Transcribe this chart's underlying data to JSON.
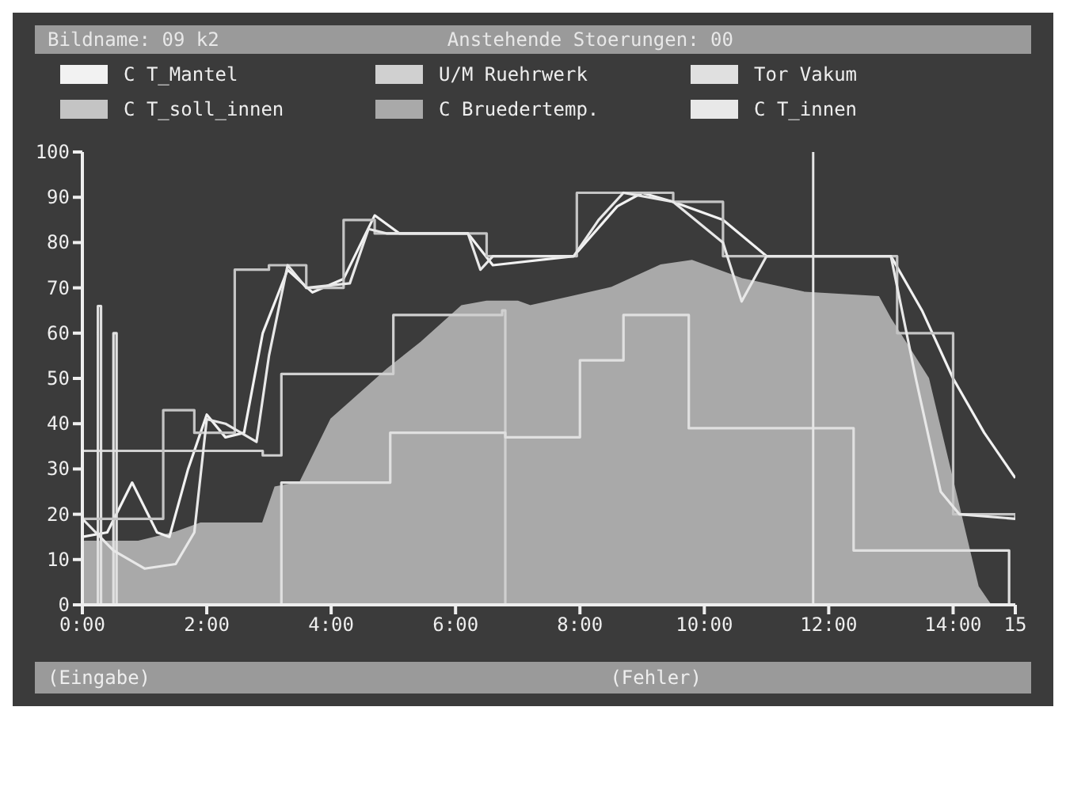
{
  "chart_data": {
    "type": "line",
    "title": "Bildname: 09 k2",
    "subtitle": "Anstehende Stoerungen: 00",
    "annotations": [
      "(Eingabe)",
      "(Fehler)"
    ],
    "xlim": [
      0,
      15
    ],
    "ylim": [
      0,
      100
    ],
    "xticks": [
      {
        "value": 0,
        "label": "0:00"
      },
      {
        "value": 2,
        "label": "2:00"
      },
      {
        "value": 4,
        "label": "4:00"
      },
      {
        "value": 6,
        "label": "6:00"
      },
      {
        "value": 8,
        "label": "8:00"
      },
      {
        "value": 10,
        "label": "10:00"
      },
      {
        "value": 12,
        "label": "12:00"
      },
      {
        "value": 14,
        "label": "14:00"
      },
      15
    ],
    "yticks": [
      0,
      10,
      20,
      30,
      40,
      50,
      60,
      70,
      80,
      90,
      100
    ],
    "grid": false,
    "legend": "top",
    "marker": "none",
    "ref_lines": [
      {
        "axis": "x",
        "value": 11.75,
        "color": "#e6e6e6"
      }
    ],
    "series": [
      {
        "name": "C T_Mantel",
        "color": "#f2f2f2",
        "x": [
          0,
          0.4,
          0.8,
          1.2,
          1.4,
          1.7,
          2.0,
          2.3,
          2.6,
          2.9,
          3.3,
          3.7,
          4.2,
          4.7,
          5.1,
          6.2,
          6.6,
          7.9,
          8.6,
          9.0,
          9.5,
          10.3,
          11.0,
          13.0,
          13.5,
          14.0,
          14.5,
          15.0
        ],
        "values": [
          15,
          16,
          27,
          16,
          15,
          30,
          42,
          37,
          38,
          60,
          74,
          69,
          72,
          86,
          82,
          82,
          75,
          77,
          88,
          91,
          89,
          85,
          77,
          77,
          65,
          50,
          38,
          28
        ]
      },
      {
        "name": "U/M Ruehrwerk",
        "type": "step",
        "color": "#d0d0d0",
        "x": [
          0,
          2.9,
          3.15,
          3.2,
          4.8,
          5.0,
          6.75,
          6.8,
          15.0
        ],
        "values": [
          34,
          33,
          33,
          51,
          51,
          64,
          65,
          0,
          0
        ]
      },
      {
        "name": "Tor Vakum",
        "type": "step",
        "color": "#e0e0e0",
        "x": [
          0,
          0.25,
          0.3,
          0.5,
          0.55,
          3.2,
          4.95,
          6.8,
          7.0,
          8.0,
          8.7,
          9.75,
          12.4,
          14.9,
          15.0
        ],
        "values": [
          0,
          66,
          0,
          60,
          0,
          27,
          38,
          37,
          37,
          54,
          64,
          39,
          12,
          0,
          0
        ]
      },
      {
        "name": "C T_soll_innen",
        "type": "step",
        "color": "#c4c4c4",
        "x": [
          0,
          1.3,
          1.8,
          2.45,
          3.0,
          3.6,
          4.2,
          4.7,
          6.2,
          6.5,
          7.95,
          9.5,
          10.3,
          13.0,
          13.1,
          14.0,
          15.0
        ],
        "values": [
          19,
          43,
          38,
          74,
          75,
          70,
          85,
          82,
          82,
          77,
          91,
          89,
          77,
          77,
          60,
          20,
          19
        ]
      },
      {
        "name": "C Bruedertemp.",
        "type": "area",
        "color": "#a9a9a9",
        "x": [
          0,
          0.9,
          1.5,
          1.9,
          2.9,
          3.1,
          3.5,
          4.0,
          4.9,
          5.45,
          6.1,
          6.5,
          7.0,
          7.2,
          7.86,
          8.5,
          9.3,
          9.8,
          10.6,
          11.6,
          12.8,
          13.0,
          13.6,
          14.0,
          14.4,
          14.6
        ],
        "values": [
          14,
          14,
          16,
          18,
          18,
          26,
          27,
          41,
          52,
          58,
          66,
          67,
          67,
          66,
          68,
          70,
          75,
          76,
          72,
          69,
          68,
          63,
          50,
          27,
          4,
          0
        ]
      },
      {
        "name": "C T_innen",
        "color": "#e8e8e8",
        "x": [
          0,
          0.5,
          1.0,
          1.5,
          1.8,
          2.0,
          2.3,
          2.8,
          3.0,
          3.3,
          3.6,
          4.3,
          4.6,
          4.9,
          6.2,
          6.4,
          6.6,
          7.9,
          8.3,
          8.7,
          9.5,
          10.3,
          10.6,
          11.0,
          13.0,
          13.4,
          13.8,
          14.1,
          15.0
        ],
        "values": [
          19,
          12,
          8,
          9,
          16,
          41,
          40,
          36,
          55,
          75,
          70,
          71,
          83,
          82,
          82,
          74,
          77,
          77,
          85,
          91,
          89,
          80,
          67,
          77,
          77,
          50,
          25,
          20,
          19
        ]
      }
    ]
  }
}
